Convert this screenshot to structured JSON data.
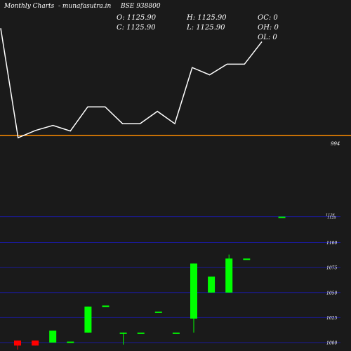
{
  "header": {
    "brand": "Monthly Charts",
    "site": "- munafasutra.in",
    "symbol": "BSE 938800"
  },
  "ohlc": {
    "open": "O: 1125.90",
    "high": "H: 1125.90",
    "low": "L: 1125.90",
    "close": "C: 1125.90",
    "oc": "OC: 0",
    "oh": "OH: 0",
    "ol": "OL: 0"
  },
  "colors": {
    "background": "#1a1a1a",
    "line": "#ffffff",
    "reference_line": "#ff8c00",
    "up_candle": "#00ff00",
    "down_candle": "#ff0000",
    "grid": "#1a1a99"
  },
  "chart_data": [
    {
      "type": "line",
      "reference_value": 994,
      "reference_label": "994",
      "values": [
        1185,
        990,
        1003,
        1012,
        1002,
        1045,
        1045,
        1015,
        1015,
        1037,
        1015,
        1115,
        1102,
        1121,
        1121,
        1161
      ]
    },
    {
      "type": "candlestick",
      "ylim": [
        996,
        1135
      ],
      "yticks": [
        1000,
        1025,
        1050,
        1075,
        1100
      ],
      "ytick_labels": [
        "1000",
        "1025",
        "1050",
        "1075",
        "1100"
      ],
      "top_labels": [
        "1126",
        "1125"
      ],
      "last_value": 1125.9,
      "candles": [
        {
          "open": 1002,
          "close": 997,
          "high": 1002,
          "low": 993
        },
        {
          "open": 1002,
          "close": 997,
          "high": 1002,
          "low": 997
        },
        {
          "open": 1000,
          "close": 1012,
          "high": 1012,
          "low": 1000
        },
        {
          "open": 1001,
          "close": 1001,
          "high": 1001,
          "low": 1001
        },
        {
          "open": 1010,
          "close": 1036,
          "high": 1036,
          "low": 1010
        },
        {
          "open": 1037,
          "close": 1037,
          "high": 1037,
          "low": 1037
        },
        {
          "open": 1010,
          "close": 1010,
          "high": 1010,
          "low": 998
        },
        {
          "open": 1010,
          "close": 1010,
          "high": 1010,
          "low": 1010
        },
        {
          "open": 1031,
          "close": 1031,
          "high": 1031,
          "low": 1031
        },
        {
          "open": 1010,
          "close": 1010,
          "high": 1010,
          "low": 1010
        },
        {
          "open": 1024,
          "close": 1079,
          "high": 1079,
          "low": 1010
        },
        {
          "open": 1050,
          "close": 1066,
          "high": 1066,
          "low": 1050
        },
        {
          "open": 1050,
          "close": 1084,
          "high": 1088,
          "low": 1050
        },
        {
          "open": 1084,
          "close": 1084,
          "high": 1084,
          "low": 1084
        },
        null,
        {
          "open": 1125.9,
          "close": 1125.9,
          "high": 1125.9,
          "low": 1125.9
        }
      ]
    }
  ]
}
